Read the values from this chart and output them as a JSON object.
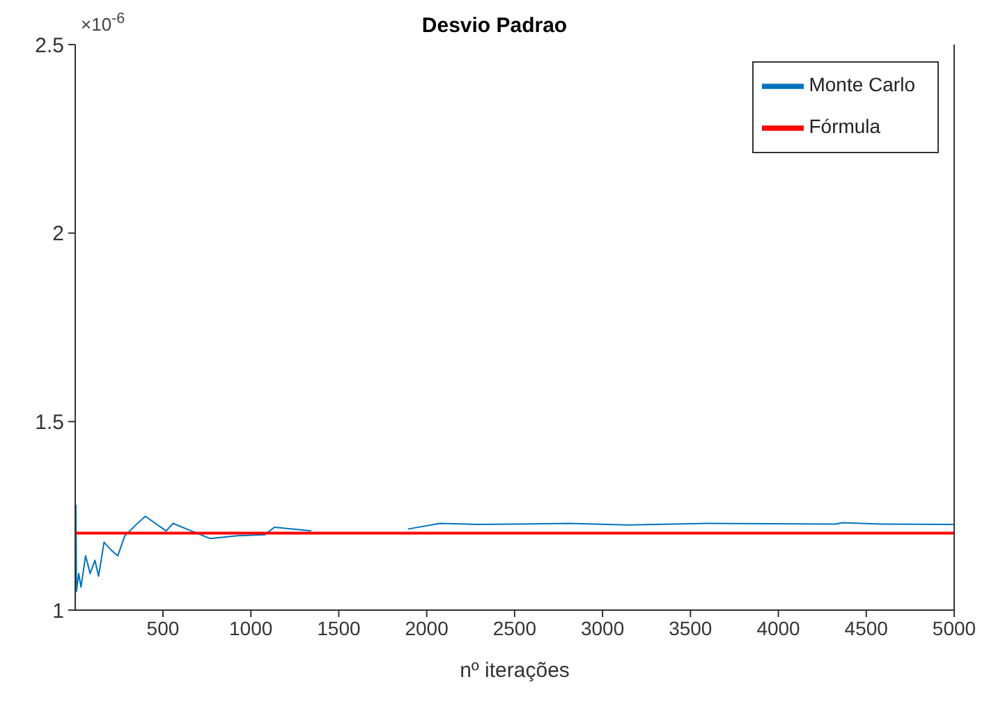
{
  "chart_data": {
    "type": "line",
    "title": "Desvio Padrao",
    "xlabel": "nº iterações",
    "annotations": [
      "×10$^{-6}$"
    ],
    "xlim": [
      1,
      5000
    ],
    "xticks": [
      500,
      1000,
      1500,
      2000,
      2500,
      3000,
      3500,
      4000,
      4500,
      5000
    ],
    "ylim": [
      1,
      2.5
    ],
    "yticks": [
      1,
      1.5,
      2,
      2.5
    ],
    "grid": false,
    "legend": "top right",
    "line_style": "solid",
    "marker": "none",
    "series": [
      {
        "name": "Monte Carlo",
        "color": "#0072bd",
        "x": [
          1,
          5,
          8,
          21,
          34,
          60,
          86,
          113,
          134,
          165,
          204,
          243,
          283,
          348,
          400,
          518,
          557,
          662,
          767,
          924,
          1081,
          1134,
          1343,
          1605,
          1762,
          1893,
          2076,
          2232,
          2285,
          2807,
          3147,
          3592,
          4325,
          4364,
          4587,
          5000
        ],
        "values": [
          1.0,
          1.278,
          1.05,
          1.097,
          1.061,
          1.144,
          1.097,
          1.132,
          1.09,
          1.18,
          1.16,
          1.144,
          1.197,
          1.227,
          1.249,
          1.21,
          1.23,
          1.21,
          1.19,
          1.197,
          1.2,
          1.22,
          1.21,
          null,
          null,
          1.215,
          1.23,
          1.228,
          1.227,
          1.23,
          1.226,
          1.23,
          1.228,
          1.232,
          1.228,
          1.227
        ]
      },
      {
        "name": "Fórmula",
        "color": "#ff0000",
        "x": [
          1,
          5000
        ],
        "values": [
          1.204,
          1.204
        ]
      }
    ]
  }
}
